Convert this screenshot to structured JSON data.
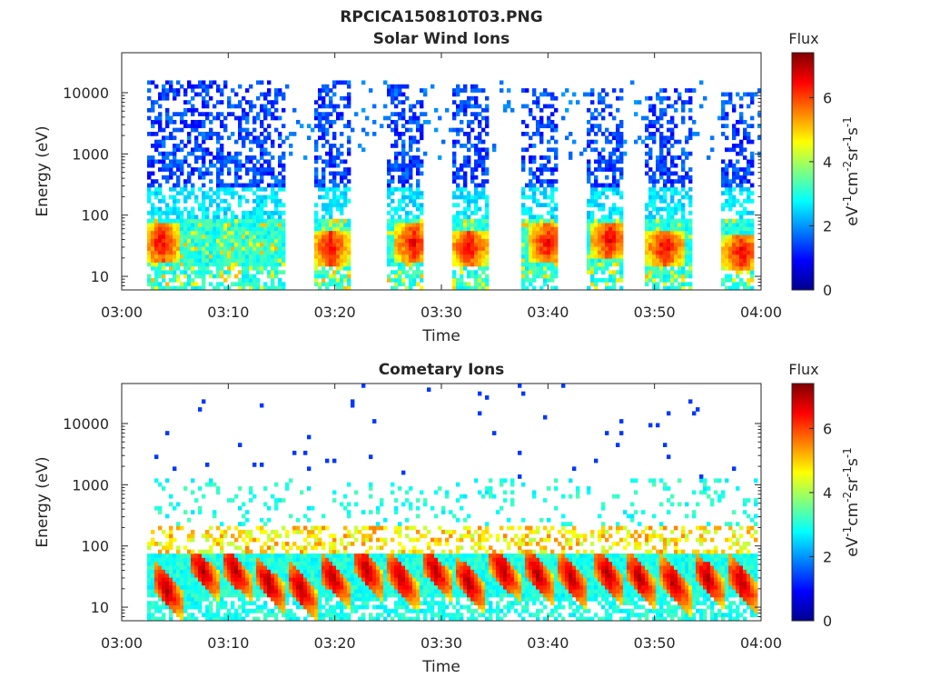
{
  "figure": {
    "title": "RPCICA150810T03.PNG"
  },
  "chart_data": [
    {
      "type": "heatmap",
      "title": "Solar Wind Ions",
      "xlabel": "Time",
      "ylabel": "Energy (eV)",
      "x_ticks": [
        "03:00",
        "03:10",
        "03:20",
        "03:30",
        "03:40",
        "03:50",
        "04:00"
      ],
      "x_range": [
        "03:00",
        "04:00"
      ],
      "y_scale": "log",
      "y_ticks": [
        "10",
        "100",
        "1000",
        "10000"
      ],
      "y_range": [
        6,
        45000
      ],
      "colorbar": {
        "title": "Flux",
        "label": "eV-1cm-2sr-1s-1",
        "ticks": [
          "0",
          "2",
          "4",
          "6"
        ],
        "range": [
          0,
          7.4
        ],
        "colormap": "jet"
      },
      "bursts": [
        {
          "start_min": 2.4,
          "end_min": 15.2,
          "peak_min": 3.8,
          "peak_energy_eV": 35,
          "max_energy_eV": 15000
        },
        {
          "start_min": 18.2,
          "end_min": 21.6,
          "peak_min": 19.6,
          "peak_energy_eV": 30,
          "max_energy_eV": 15000
        },
        {
          "start_min": 24.8,
          "end_min": 28.4,
          "peak_min": 27.4,
          "peak_energy_eV": 35,
          "max_energy_eV": 13000
        },
        {
          "start_min": 31.0,
          "end_min": 34.6,
          "peak_min": 32.6,
          "peak_energy_eV": 30,
          "max_energy_eV": 14000
        },
        {
          "start_min": 37.4,
          "end_min": 40.8,
          "peak_min": 40.0,
          "peak_energy_eV": 35,
          "max_energy_eV": 12000
        },
        {
          "start_min": 43.6,
          "end_min": 47.0,
          "peak_min": 45.8,
          "peak_energy_eV": 40,
          "max_energy_eV": 12000
        },
        {
          "start_min": 49.0,
          "end_min": 53.6,
          "peak_min": 51.0,
          "peak_energy_eV": 30,
          "max_energy_eV": 12000
        },
        {
          "start_min": 56.2,
          "end_min": 59.4,
          "peak_min": 58.2,
          "peak_energy_eV": 25,
          "max_energy_eV": 10000
        }
      ]
    },
    {
      "type": "heatmap",
      "title": "Cometary Ions",
      "xlabel": "Time",
      "ylabel": "Energy (eV)",
      "x_ticks": [
        "03:00",
        "03:10",
        "03:20",
        "03:30",
        "03:40",
        "03:50",
        "04:00"
      ],
      "x_range": [
        "03:00",
        "04:00"
      ],
      "y_scale": "log",
      "y_ticks": [
        "10",
        "100",
        "1000",
        "10000"
      ],
      "y_range": [
        6,
        45000
      ],
      "colorbar": {
        "title": "Flux",
        "label": "eV-1cm-2sr-1s-1",
        "ticks": [
          "0",
          "2",
          "4",
          "6"
        ],
        "range": [
          0,
          7.4
        ],
        "colormap": "jet"
      },
      "bursts": [
        {
          "start_min": 2.4,
          "end_min": 59.6,
          "peak_energy_eV": 25,
          "max_energy_eV": 1000
        },
        {
          "peak_min": 4.2,
          "peak_energy_eV": 20
        },
        {
          "peak_min": 7.6,
          "peak_energy_eV": 40
        },
        {
          "peak_min": 10.6,
          "peak_energy_eV": 40
        },
        {
          "peak_min": 13.8,
          "peak_energy_eV": 25
        },
        {
          "peak_min": 16.8,
          "peak_energy_eV": 20
        },
        {
          "peak_min": 19.8,
          "peak_energy_eV": 30
        },
        {
          "peak_min": 23.0,
          "peak_energy_eV": 40
        },
        {
          "peak_min": 26.2,
          "peak_energy_eV": 30
        },
        {
          "peak_min": 29.4,
          "peak_energy_eV": 40
        },
        {
          "peak_min": 32.6,
          "peak_energy_eV": 25
        },
        {
          "peak_min": 35.8,
          "peak_energy_eV": 40
        },
        {
          "peak_min": 39.0,
          "peak_energy_eV": 35
        },
        {
          "peak_min": 42.2,
          "peak_energy_eV": 30
        },
        {
          "peak_min": 45.6,
          "peak_energy_eV": 35
        },
        {
          "peak_min": 48.6,
          "peak_energy_eV": 30
        },
        {
          "peak_min": 51.8,
          "peak_energy_eV": 25
        },
        {
          "peak_min": 55.0,
          "peak_energy_eV": 30
        },
        {
          "peak_min": 58.2,
          "peak_energy_eV": 25
        }
      ]
    }
  ]
}
